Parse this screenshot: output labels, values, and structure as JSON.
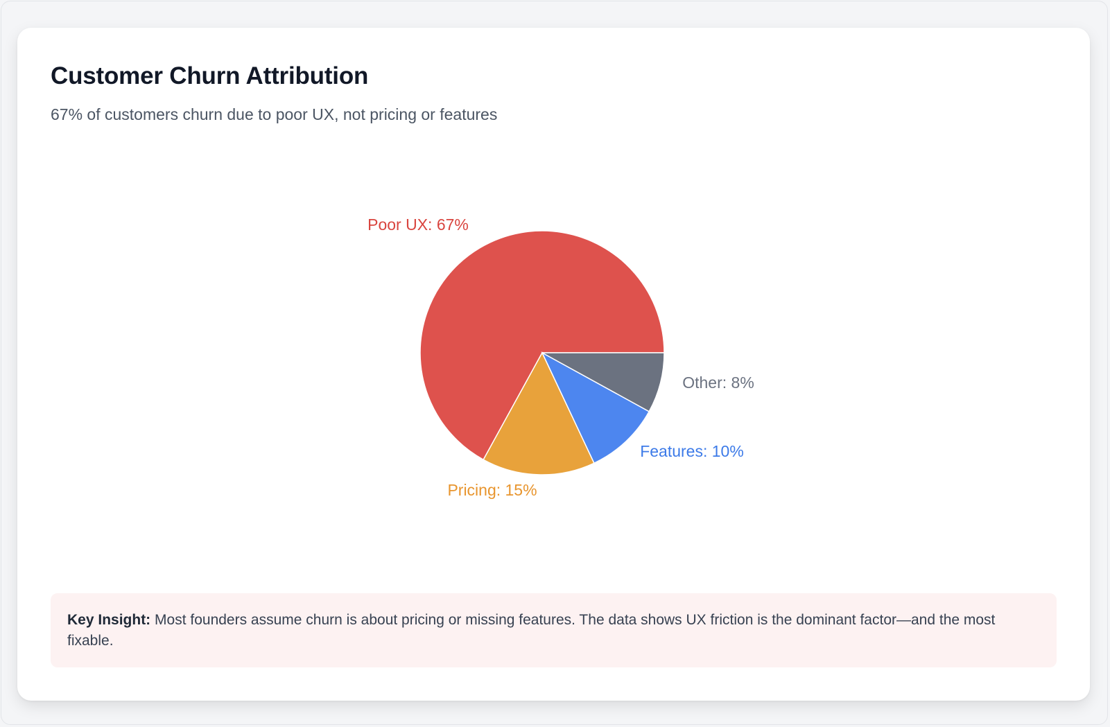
{
  "title": "Customer Churn Attribution",
  "subtitle": "67% of customers churn due to poor UX, not pricing or features",
  "chart_data": {
    "type": "pie",
    "categories": [
      "Poor UX",
      "Pricing",
      "Features",
      "Other"
    ],
    "values": [
      67,
      15,
      10,
      8
    ],
    "labels": [
      "Poor UX: 67%",
      "Pricing: 15%",
      "Features: 10%",
      "Other: 8%"
    ],
    "colors": [
      "#de524d",
      "#e8a23b",
      "#4d86ef",
      "#6b7280"
    ],
    "label_colors": [
      "#d9453f",
      "#e8952e",
      "#3c7ae8",
      "#6b7280"
    ],
    "start_angle_deg": 0,
    "direction": "counter-clockwise-from-east"
  },
  "insight": {
    "label": "Key Insight:",
    "text": "Most founders assume churn is about pricing or missing features. The data shows UX friction is the dominant factor—and the most fixable."
  }
}
